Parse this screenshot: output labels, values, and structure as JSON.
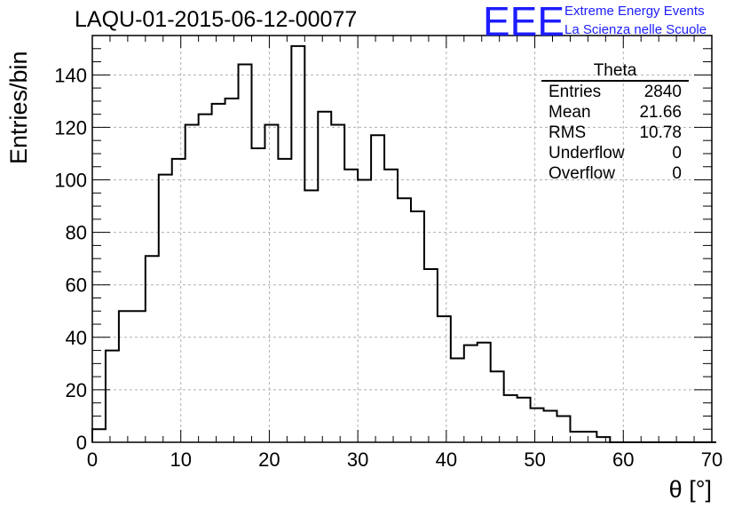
{
  "header": {
    "run_title": "LAQU-01-2015-06-12-00077",
    "logo_text": "EEE",
    "logo_line1": "Extreme Energy Events",
    "logo_line2": "La Scienza nelle Scuole"
  },
  "stats_box": {
    "title": "Theta",
    "rows": [
      {
        "label": "Entries",
        "value": "2840"
      },
      {
        "label": "Mean",
        "value": "21.66"
      },
      {
        "label": "RMS",
        "value": "10.78"
      },
      {
        "label": "Underflow",
        "value": "0"
      },
      {
        "label": "Overflow",
        "value": "0"
      }
    ]
  },
  "colors": {
    "histogram_line": "#000000",
    "grid": "#b0b0b0",
    "logo": "#1d1dff"
  },
  "chart_data": {
    "type": "bar",
    "subtype": "step-histogram",
    "xlabel": "θ [°]",
    "ylabel": "Entries/bin",
    "xlim": [
      0,
      70
    ],
    "ylim": [
      0,
      155
    ],
    "x_ticks": [
      0,
      10,
      20,
      30,
      40,
      50,
      60,
      70
    ],
    "y_ticks": [
      0,
      20,
      40,
      60,
      80,
      100,
      120,
      140
    ],
    "grid": true,
    "legend": "top-right stats box",
    "bin_width": 1.5,
    "bin_edges_start": 0,
    "values": [
      5,
      35,
      50,
      50,
      71,
      102,
      108,
      121,
      125,
      129,
      131,
      144,
      112,
      121,
      108,
      151,
      96,
      126,
      121,
      104,
      100,
      117,
      104,
      93,
      88,
      66,
      48,
      32,
      37,
      38,
      27,
      18,
      17,
      13,
      12,
      10,
      4,
      4,
      2,
      0,
      0,
      0,
      0,
      0,
      0,
      0,
      0
    ]
  }
}
